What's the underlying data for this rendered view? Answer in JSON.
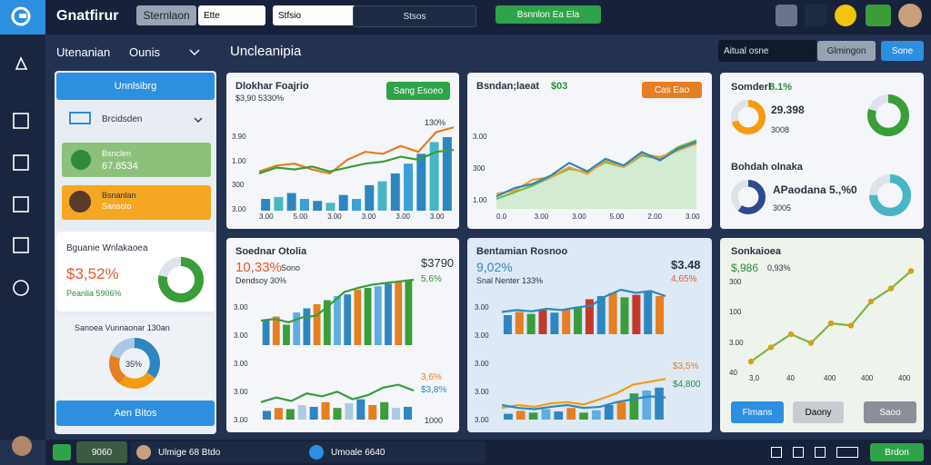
{
  "topbar": {
    "brand": "Gnatfirur",
    "tab": "Sternlaon",
    "select": "Ette",
    "search": "Stfsio",
    "search2": "Stsos",
    "action": "Bsnnlon Ea Ela"
  },
  "header": {
    "left": "Utenanian",
    "menu": "Ounis",
    "title": "Uncleanipia",
    "field": "Aitual osne",
    "btn1": "Glmingon",
    "btn2": "Sone"
  },
  "panel": {
    "heading": "Unnlsibrg",
    "dropdown": "Brcidsden",
    "item1": {
      "title": "Bsnclen",
      "value": "67.8534"
    },
    "item2": {
      "title": "Bsnanlan",
      "value": "Sansolo"
    },
    "stat": {
      "title": "Bguanie Wnlakaoea",
      "value": "$3,52%",
      "note": "Peanlia 5906%",
      "donut": {
        "value": 78,
        "color": "#3a9d3a"
      }
    },
    "donut_card": {
      "title": "Sanoea Vunnaonar 130an",
      "center": "35%",
      "donut": {
        "segments": [
          35,
          25,
          20,
          20
        ],
        "colors": [
          "#2e86c1",
          "#f39c12",
          "#e67e22",
          "#aac8e6"
        ]
      }
    },
    "button": "Aen Bitos"
  },
  "cards": [
    {
      "title": "Dlokhar Foajrio",
      "subtitle": "$3,90 5330%",
      "button": "Sang Esoeo",
      "right": "130%",
      "y_labels": [
        "3.90",
        "1.00",
        "300",
        "3.00"
      ],
      "x_labels": [
        "3.00",
        "5.00",
        "3.00",
        "3.00",
        "3.00",
        "3.00"
      ],
      "chart": {
        "ylim": [
          0,
          100
        ],
        "bars": [
          12,
          14,
          18,
          12,
          10,
          8,
          16,
          12,
          26,
          30,
          38,
          48,
          58,
          70,
          75
        ],
        "bar_colors": [
          "#2e86c1",
          "#48b5c4",
          "#2e86c1",
          "#3aa0d8"
        ],
        "lines": [
          {
            "color": "#e67e22",
            "values": [
              40,
              46,
              48,
              42,
              38,
              52,
              60,
              58,
              66,
              60,
              80,
              85
            ]
          },
          {
            "color": "#3a9d3a",
            "values": [
              38,
              44,
              42,
              45,
              40,
              44,
              48,
              50,
              55,
              52,
              60,
              62
            ]
          }
        ]
      }
    },
    {
      "title": "Bsndan;laeat",
      "highlight": "$03",
      "button": "Cas Eao",
      "y_labels": [
        "3.00",
        "300",
        "1.00"
      ],
      "x_labels": [
        "0.0",
        "3.00",
        "3.00",
        "5.00",
        "2.00",
        "3.00"
      ],
      "chart": {
        "ylim": [
          0,
          100
        ],
        "area": "#d3ead3",
        "lines": [
          {
            "color": "#7cb342",
            "values": [
              12,
              20,
              28,
              38,
              48,
              44,
              56,
              50,
              64,
              60,
              74,
              82
            ]
          },
          {
            "color": "#f0a030",
            "values": [
              18,
              22,
              35,
              38,
              50,
              42,
              58,
              50,
              66,
              62,
              70,
              78
            ]
          },
          {
            "color": "#2e86c1",
            "values": [
              15,
              25,
              30,
              40,
              55,
              45,
              60,
              52,
              68,
              58,
              72,
              80
            ]
          }
        ]
      }
    },
    {
      "items": [
        {
          "title": "Somderl",
          "highlight": "8.1%",
          "value": "29.398",
          "note": "3008",
          "donuts": [
            {
              "value": 70,
              "color": "#f39c12"
            },
            {
              "value": 80,
              "color": "#3a9d3a"
            }
          ]
        },
        {
          "title": "Bohdah olnaka",
          "value": "APaodana 5.,%0",
          "note": "3005",
          "donuts": [
            {
              "value": 60,
              "color": "#2e4a8c"
            },
            {
              "value": 75,
              "color": "#48b5c4"
            }
          ]
        }
      ]
    },
    {
      "title": "Soednar Otolia",
      "highlight": "10,33%",
      "sub1": "Sono",
      "sub2": "Dendsoy 30%",
      "right": [
        "$3790",
        "5,6%",
        "3,6%",
        "$3,8%",
        "1000"
      ],
      "y_labels": [
        "3.00",
        "3.00",
        "3.00",
        "3.00",
        "3.00"
      ],
      "chart": {
        "ylim": [
          0,
          100
        ],
        "bars": [
          30,
          35,
          25,
          40,
          45,
          50,
          55,
          60,
          62,
          68,
          70,
          72,
          75,
          78,
          80
        ],
        "bar_colors": [
          "#2e86c1",
          "#e67e22",
          "#3a9d3a",
          "#5dade2"
        ],
        "lines": [
          {
            "color": "#3a9d3a",
            "values": [
              30,
              32,
              28,
              34,
              36,
              50,
              65,
              70,
              74,
              76,
              78,
              80
            ]
          }
        ]
      },
      "chart2": {
        "ylim": [
          0,
          100
        ],
        "bars": [
          15,
          20,
          18,
          25,
          22,
          30,
          20,
          28,
          35,
          25,
          30,
          20,
          22
        ],
        "bar_colors": [
          "#2e86c1",
          "#e67e22",
          "#3a9d3a",
          "#a9cce3"
        ],
        "lines": [
          {
            "color": "#3a9d3a",
            "values": [
              30,
              38,
              32,
              45,
              40,
              48,
              35,
              42,
              55,
              60,
              50
            ]
          }
        ]
      }
    },
    {
      "title": "Bentamian Rosnoo",
      "highlight": "9,02%",
      "sub": "Snal Nenter 133%",
      "right": [
        "$3.48",
        "4,65%",
        "$3,5%",
        "$4,800"
      ],
      "y_labels": [
        "3.00",
        "3.00",
        "3.00",
        "3.00",
        "3.00"
      ],
      "chart": {
        "ylim": [
          0,
          100
        ],
        "bars": [
          30,
          35,
          32,
          38,
          34,
          40,
          42,
          55,
          60,
          65,
          58,
          62,
          68,
          60
        ],
        "bar_colors": [
          "#2e86c1",
          "#e67e22",
          "#3a9d3a",
          "#c0392b"
        ],
        "lines": [
          {
            "color": "#2e86c1",
            "values": [
              35,
              38,
              36,
              40,
              38,
              42,
              45,
              60,
              70,
              65,
              68,
              60
            ]
          }
        ]
      },
      "chart2": {
        "ylim": [
          0,
          100
        ],
        "bars": [
          10,
          15,
          12,
          18,
          14,
          20,
          12,
          16,
          25,
          30,
          45,
          50,
          55
        ],
        "bar_colors": [
          "#2e86c1",
          "#e67e22",
          "#3a9d3a",
          "#5dade2"
        ],
        "lines": [
          {
            "color": "#f39c12",
            "values": [
              20,
              25,
              22,
              28,
              30,
              26,
              35,
              45,
              60,
              65,
              70
            ]
          },
          {
            "color": "#2e86c1",
            "values": [
              25,
              20,
              18,
              22,
              25,
              20,
              22,
              30,
              35,
              40,
              38
            ]
          }
        ]
      }
    },
    {
      "title": "Sonkaioea",
      "highlight": "$,986",
      "sub": "0,93%",
      "y_labels": [
        "300",
        "100",
        "3.00",
        "40"
      ],
      "x_labels": [
        "3,0",
        "40",
        "400",
        "400",
        "400"
      ],
      "chart": {
        "ylim": [
          0,
          100
        ],
        "dots": "#d4a017",
        "lines": [
          {
            "color": "#7cb342",
            "values": [
              5,
              18,
              30,
              22,
              40,
              38,
              60,
              72,
              88
            ]
          }
        ]
      },
      "buttons": [
        "Flmans",
        "Daony",
        "Saoo"
      ]
    }
  ],
  "bottombar": {
    "tab1": "9060",
    "tab2": "Ulmige 68 Btdo",
    "tab3": "Umoale 6640",
    "action": "Brdon"
  }
}
